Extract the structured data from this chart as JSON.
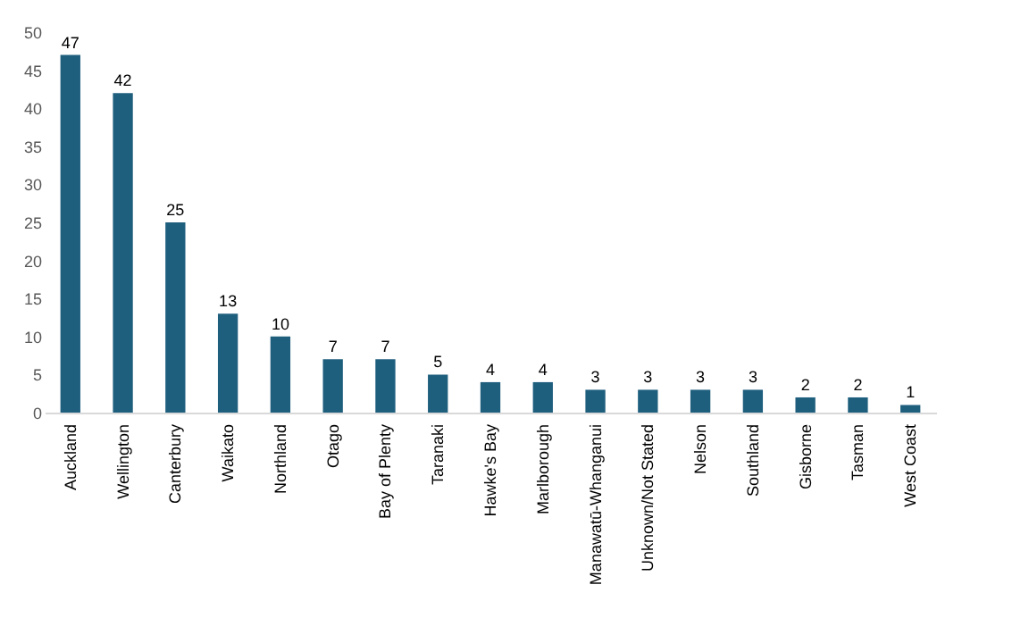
{
  "chart_data": {
    "type": "bar",
    "categories": [
      "Auckland",
      "Wellington",
      "Canterbury",
      "Waikato",
      "Northland",
      "Otago",
      "Bay of Plenty",
      "Taranaki",
      "Hawke's Bay",
      "Marlborough",
      "Manawatū-Whanganui",
      "Unknown/Not Stated",
      "Nelson",
      "Southland",
      "Gisborne",
      "Tasman",
      "West Coast"
    ],
    "values": [
      47,
      42,
      25,
      13,
      10,
      7,
      7,
      5,
      4,
      4,
      3,
      3,
      3,
      3,
      2,
      2,
      1
    ],
    "color": "#1f5f7e",
    "ylim": [
      0,
      50
    ],
    "yticks": [
      0,
      5,
      10,
      15,
      20,
      25,
      30,
      35,
      40,
      45,
      50
    ],
    "grid": false,
    "data_labels": true
  }
}
